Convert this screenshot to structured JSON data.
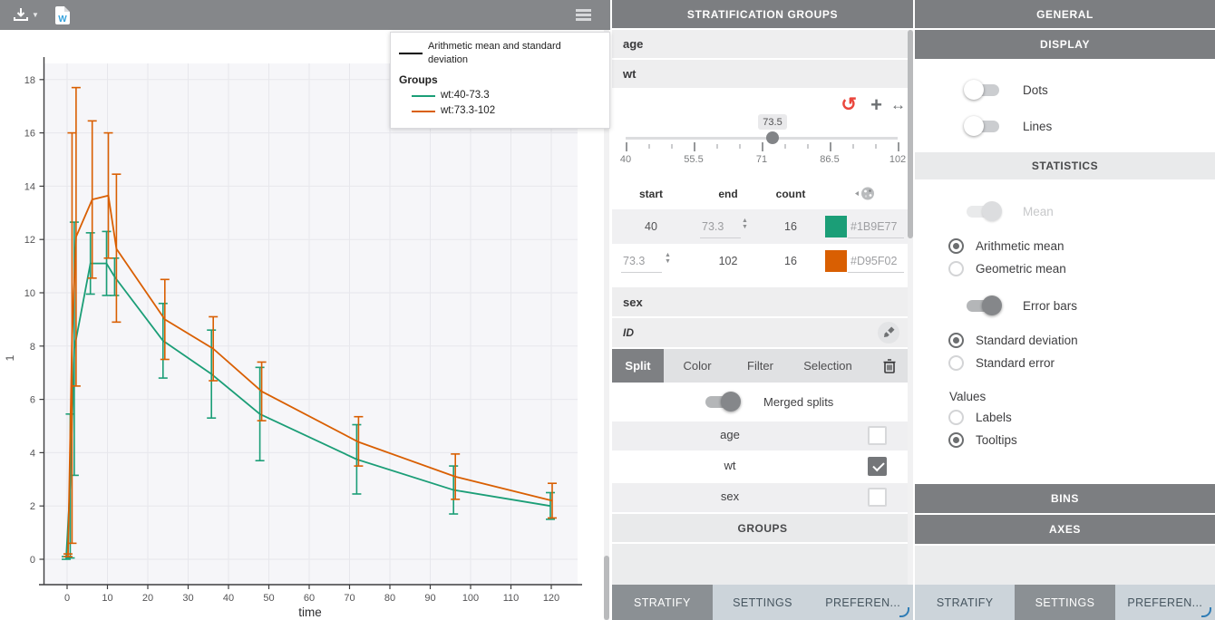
{
  "topbar": {
    "icons": {
      "export": "download-icon",
      "report": "word-document-icon",
      "menu": "hamburger-icon"
    }
  },
  "chart_data": {
    "type": "line",
    "title": "",
    "xlabel": "time",
    "ylabel": "1",
    "xticks": [
      0,
      10,
      20,
      30,
      40,
      50,
      60,
      70,
      80,
      90,
      100,
      110,
      120
    ],
    "yticks": [
      0,
      2,
      4,
      6,
      8,
      10,
      12,
      14,
      16,
      18
    ],
    "xlim": [
      -6,
      127
    ],
    "ylim": [
      -1,
      18.7
    ],
    "grid": true,
    "legend": {
      "position": "top-right",
      "estimator_label": "Arithmetic mean and standard deviation",
      "groups_title": "Groups"
    },
    "series": [
      {
        "name": "wt:40-73.3",
        "color": "#1B9E77",
        "x": [
          0,
          1,
          2,
          6,
          10,
          12,
          24,
          36,
          48,
          72,
          96,
          120
        ],
        "mean": [
          0.05,
          2.8,
          7.9,
          11.1,
          11.1,
          10.6,
          8.2,
          6.95,
          5.45,
          3.75,
          2.6,
          2.0
        ],
        "sd_lo": [
          0.0,
          0.05,
          3.15,
          9.95,
          9.9,
          9.9,
          6.8,
          5.3,
          3.7,
          2.45,
          1.7,
          1.5
        ],
        "sd_hi": [
          0.1,
          5.45,
          12.65,
          12.25,
          12.3,
          11.3,
          9.6,
          8.6,
          7.2,
          5.05,
          3.5,
          2.5
        ]
      },
      {
        "name": "wt:73.3-102",
        "color": "#D95F02",
        "x": [
          0,
          1,
          2,
          6,
          10,
          12,
          24,
          36,
          48,
          72,
          96,
          120
        ],
        "mean": [
          0.15,
          8.3,
          12.1,
          13.5,
          13.65,
          11.65,
          9.0,
          7.9,
          6.3,
          4.4,
          3.1,
          2.2
        ],
        "sd_lo": [
          0.1,
          0.6,
          6.5,
          10.55,
          11.3,
          8.9,
          7.5,
          6.7,
          5.2,
          3.5,
          2.25,
          1.55
        ],
        "sd_hi": [
          0.2,
          16.0,
          17.7,
          16.45,
          16.0,
          14.45,
          10.5,
          9.1,
          7.4,
          5.35,
          3.95,
          2.85
        ]
      }
    ]
  },
  "stratification": {
    "title": "STRATIFICATION GROUPS",
    "section_age": "age",
    "section_wt": "wt",
    "section_sex": "sex",
    "section_id": "ID",
    "slider": {
      "value": "73.5",
      "ticks": [
        "40",
        "55.5",
        "71",
        "86.5",
        "102"
      ],
      "icons": {
        "reset": "undo-icon",
        "add": "plus-icon",
        "expand": "horizontal-arrows-icon"
      }
    },
    "table": {
      "headers": {
        "start": "start",
        "end": "end",
        "count": "count",
        "color_icon": "palette-icon"
      },
      "rows": [
        {
          "start": "40",
          "end": "73.3",
          "count": "16",
          "color": "#1B9E77"
        },
        {
          "start": "73.3",
          "end": "102",
          "count": "16",
          "color": "#D95F02"
        }
      ]
    },
    "tabs": {
      "split": "Split",
      "color": "Color",
      "filter": "Filter",
      "selection": "Selection",
      "delete_icon": "trash-icon"
    },
    "active_tab": "Split",
    "merged_splits": {
      "label": "Merged splits",
      "on": true
    },
    "split_items": [
      {
        "label": "age",
        "checked": false
      },
      {
        "label": "wt",
        "checked": true
      },
      {
        "label": "sex",
        "checked": false
      }
    ],
    "groups_label": "GROUPS",
    "bottom_tabs": [
      "STRATIFY",
      "SETTINGS",
      "PREFEREN..."
    ],
    "active_bottom_tab": "STRATIFY"
  },
  "settings": {
    "headers": {
      "general": "GENERAL",
      "display": "DISPLAY",
      "statistics": "STATISTICS",
      "bins": "BINS",
      "axes": "AXES"
    },
    "display_toggles": [
      {
        "label": "Dots",
        "on": false
      },
      {
        "label": "Lines",
        "on": false
      }
    ],
    "mean_toggle": {
      "label": "Mean",
      "on": true,
      "disabled": true
    },
    "mean_options": [
      {
        "label": "Arithmetic mean",
        "selected": true
      },
      {
        "label": "Geometric mean",
        "selected": false
      }
    ],
    "errorbars_toggle": {
      "label": "Error bars",
      "on": true
    },
    "errorbar_options": [
      {
        "label": "Standard deviation",
        "selected": true
      },
      {
        "label": "Standard error",
        "selected": false
      }
    ],
    "values_label": "Values",
    "values_options": [
      {
        "label": "Labels",
        "selected": false
      },
      {
        "label": "Tooltips",
        "selected": true
      }
    ],
    "bottom_tabs": [
      "STRATIFY",
      "SETTINGS",
      "PREFEREN..."
    ],
    "active_bottom_tab": "SETTINGS"
  }
}
